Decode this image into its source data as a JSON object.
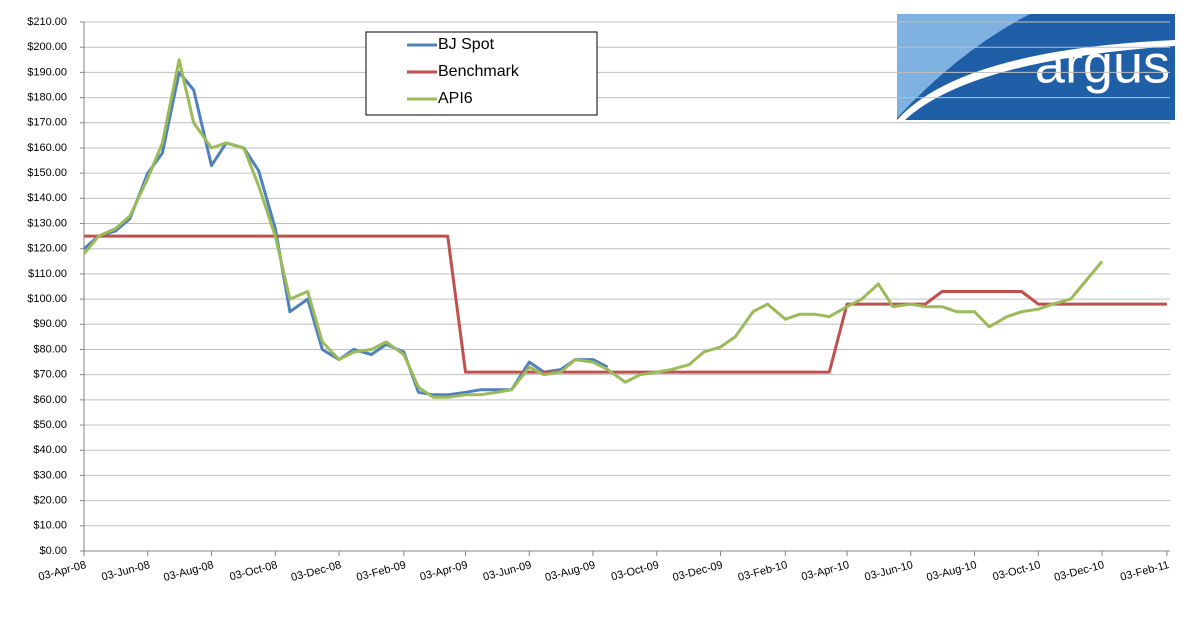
{
  "chart_data": {
    "type": "line",
    "logo": "argus",
    "x": [
      "2008-04-03",
      "2008-04-17",
      "2008-05-03",
      "2008-05-17",
      "2008-06-03",
      "2008-06-17",
      "2008-07-03",
      "2008-07-17",
      "2008-08-03",
      "2008-08-17",
      "2008-09-03",
      "2008-09-17",
      "2008-10-03",
      "2008-10-17",
      "2008-11-03",
      "2008-11-17",
      "2008-12-03",
      "2008-12-17",
      "2009-01-03",
      "2009-01-17",
      "2009-02-03",
      "2009-02-17",
      "2009-03-03",
      "2009-03-17",
      "2009-04-03",
      "2009-04-17",
      "2009-05-03",
      "2009-05-17",
      "2009-06-03",
      "2009-06-17",
      "2009-07-03",
      "2009-07-17",
      "2009-08-03",
      "2009-08-17",
      "2009-09-03",
      "2009-09-17",
      "2009-10-03",
      "2009-10-17",
      "2009-11-03",
      "2009-11-17",
      "2009-12-03",
      "2009-12-17",
      "2010-01-03",
      "2010-01-17",
      "2010-02-03",
      "2010-02-17",
      "2010-03-03",
      "2010-03-17",
      "2010-04-03",
      "2010-04-17",
      "2010-05-03",
      "2010-05-17",
      "2010-06-03",
      "2010-06-17",
      "2010-07-03",
      "2010-07-17",
      "2010-08-03",
      "2010-08-17",
      "2010-09-03",
      "2010-09-17",
      "2010-10-03",
      "2010-10-17",
      "2010-11-03",
      "2010-11-17",
      "2010-12-03",
      "2010-12-17",
      "2011-01-03",
      "2011-01-17",
      "2011-02-03"
    ],
    "series": [
      {
        "name": "BJ Spot",
        "color": "#4f81bd",
        "values": [
          120,
          125,
          127,
          132,
          150,
          158,
          190,
          183,
          153,
          162,
          160,
          151,
          128,
          95,
          100,
          80,
          76,
          80,
          78,
          82,
          79,
          63,
          62,
          62,
          63,
          64,
          64,
          64,
          75,
          71,
          72,
          76,
          76,
          73,
          null,
          null,
          null,
          null,
          null,
          null,
          null,
          null,
          null,
          null,
          null,
          null,
          null,
          null,
          null,
          null,
          null,
          null,
          null,
          null,
          null,
          null,
          null,
          null,
          null,
          null,
          null,
          null,
          null,
          null,
          null,
          null,
          null,
          null,
          null
        ]
      },
      {
        "name": "Benchmark",
        "color": "#c0504d",
        "values": [
          125,
          125,
          125,
          125,
          125,
          125,
          125,
          125,
          125,
          125,
          125,
          125,
          125,
          125,
          125,
          125,
          125,
          125,
          125,
          125,
          125,
          125,
          125,
          125,
          71,
          71,
          71,
          71,
          71,
          71,
          71,
          71,
          71,
          71,
          71,
          71,
          71,
          71,
          71,
          71,
          71,
          71,
          71,
          71,
          71,
          71,
          71,
          71,
          98,
          98,
          98,
          98,
          98,
          98,
          103,
          103,
          103,
          103,
          103,
          103,
          98,
          98,
          98,
          98,
          98,
          98,
          98,
          98,
          98
        ]
      },
      {
        "name": "API6",
        "color": "#9bbb59",
        "values": [
          118,
          125,
          128,
          133,
          148,
          162,
          195,
          170,
          160,
          162,
          160,
          145,
          125,
          100,
          103,
          83,
          76,
          79,
          80,
          83,
          78,
          65,
          61,
          61,
          62,
          62,
          63,
          64,
          73,
          70,
          71,
          76,
          75,
          72,
          67,
          70,
          71,
          72,
          74,
          79,
          81,
          85,
          95,
          98,
          92,
          94,
          94,
          93,
          97,
          100,
          106,
          97,
          98,
          97,
          97,
          95,
          95,
          89,
          93,
          95,
          96,
          98,
          100,
          107,
          115,
          null,
          null,
          null,
          null
        ]
      }
    ],
    "xlim": [
      "2008-04-03",
      "2011-02-06"
    ],
    "xticks": [
      {
        "value": "2008-04-03",
        "label": "03-Apr-08"
      },
      {
        "value": "2008-06-03",
        "label": "03-Jun-08"
      },
      {
        "value": "2008-08-03",
        "label": "03-Aug-08"
      },
      {
        "value": "2008-10-03",
        "label": "03-Oct-08"
      },
      {
        "value": "2008-12-03",
        "label": "03-Dec-08"
      },
      {
        "value": "2009-02-03",
        "label": "03-Feb-09"
      },
      {
        "value": "2009-04-03",
        "label": "03-Apr-09"
      },
      {
        "value": "2009-06-03",
        "label": "03-Jun-09"
      },
      {
        "value": "2009-08-03",
        "label": "03-Aug-09"
      },
      {
        "value": "2009-10-03",
        "label": "03-Oct-09"
      },
      {
        "value": "2009-12-03",
        "label": "03-Dec-09"
      },
      {
        "value": "2010-02-03",
        "label": "03-Feb-10"
      },
      {
        "value": "2010-04-03",
        "label": "03-Apr-10"
      },
      {
        "value": "2010-06-03",
        "label": "03-Jun-10"
      },
      {
        "value": "2010-08-03",
        "label": "03-Aug-10"
      },
      {
        "value": "2010-10-03",
        "label": "03-Oct-10"
      },
      {
        "value": "2010-12-03",
        "label": "03-Dec-10"
      },
      {
        "value": "2011-02-03",
        "label": "03-Feb-11"
      }
    ],
    "ylim": [
      0,
      210
    ],
    "yticks": [
      {
        "value": 0,
        "label": "$0.00"
      },
      {
        "value": 10,
        "label": "$10.00"
      },
      {
        "value": 20,
        "label": "$20.00"
      },
      {
        "value": 30,
        "label": "$30.00"
      },
      {
        "value": 40,
        "label": "$40.00"
      },
      {
        "value": 50,
        "label": "$50.00"
      },
      {
        "value": 60,
        "label": "$60.00"
      },
      {
        "value": 70,
        "label": "$70.00"
      },
      {
        "value": 80,
        "label": "$80.00"
      },
      {
        "value": 90,
        "label": "$90.00"
      },
      {
        "value": 100,
        "label": "$100.00"
      },
      {
        "value": 110,
        "label": "$110.00"
      },
      {
        "value": 120,
        "label": "$120.00"
      },
      {
        "value": 130,
        "label": "$130.00"
      },
      {
        "value": 140,
        "label": "$140.00"
      },
      {
        "value": 150,
        "label": "$150.00"
      },
      {
        "value": 160,
        "label": "$160.00"
      },
      {
        "value": 170,
        "label": "$170.00"
      },
      {
        "value": 180,
        "label": "$180.00"
      },
      {
        "value": 190,
        "label": "$190.00"
      },
      {
        "value": 200,
        "label": "$200.00"
      },
      {
        "value": 210,
        "label": "$210.00"
      }
    ],
    "grid": true
  }
}
